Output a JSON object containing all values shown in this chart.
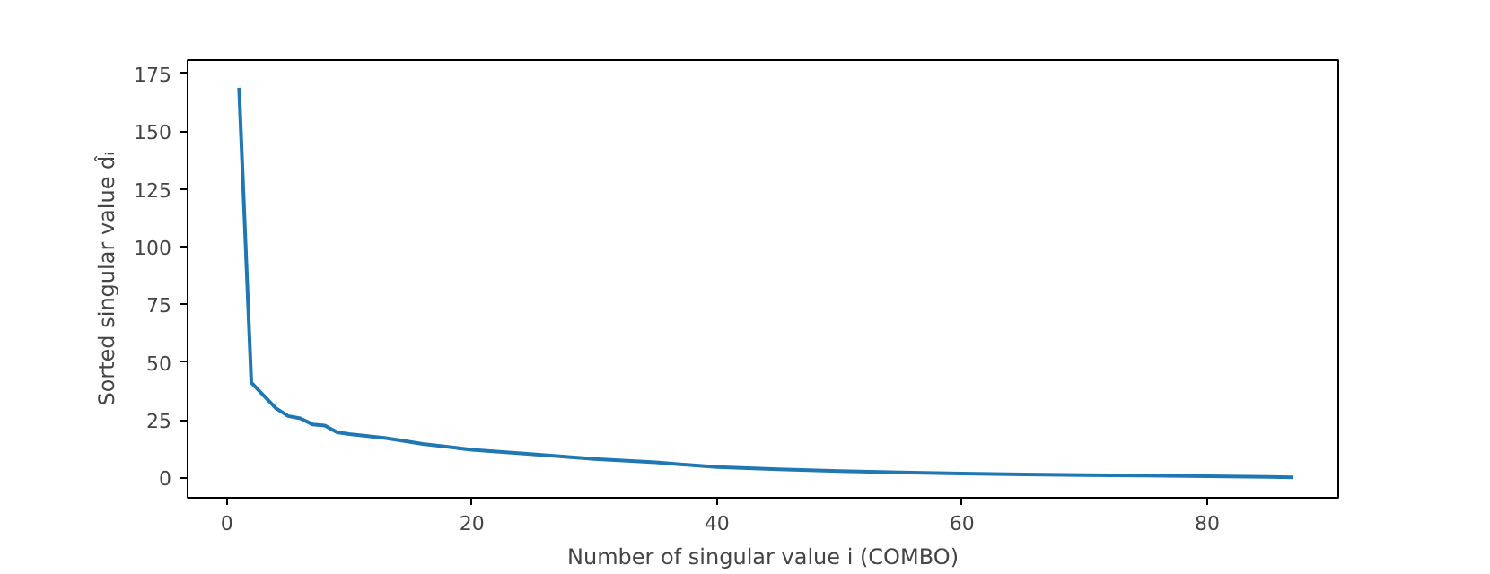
{
  "chart_data": {
    "type": "line",
    "xlabel": "Number of singular value i (COMBO)",
    "ylabel": "Sorted singular value d̂ᵢ",
    "x": [
      1,
      2,
      3,
      4,
      5,
      6,
      7,
      8,
      9,
      10,
      13,
      16,
      20,
      25,
      30,
      35,
      40,
      45,
      50,
      55,
      60,
      65,
      70,
      75,
      80,
      85,
      87
    ],
    "series": [
      {
        "color": "#1f77b4",
        "values": [
          168.8,
          41.1,
          35.5,
          30,
          26.6,
          25.6,
          23,
          22.5,
          19.6,
          18.8,
          17,
          14.5,
          12,
          10,
          8,
          6.5,
          4.5,
          3.5,
          2.8,
          2.2,
          1.7,
          1.3,
          1,
          0.8,
          0.5,
          0.2,
          0
        ]
      }
    ],
    "xlim": [
      -3.2,
      90.7
    ],
    "ylim": [
      -8.8,
      180.8
    ],
    "xticks": [
      0,
      20,
      40,
      60,
      80
    ],
    "yticks": [
      0,
      25,
      50,
      75,
      100,
      125,
      150,
      175
    ],
    "grid": false
  }
}
